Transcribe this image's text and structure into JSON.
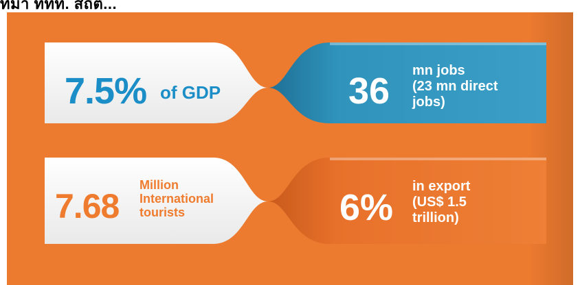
{
  "header": {
    "cut_text": "ที่มา ททท. สถิติ..."
  },
  "stats": {
    "gdp": {
      "value": "7.5%",
      "unit": "of GDP",
      "color": "#1b8ec7"
    },
    "jobs": {
      "value": "36",
      "lines": [
        "mn jobs",
        "(23 mn direct",
        "jobs)"
      ],
      "color": "#2e95bd"
    },
    "tourists": {
      "value": "7.68",
      "lines": [
        "Million",
        "International",
        "tourists"
      ],
      "color": "#ef7c2e"
    },
    "export": {
      "value": "6%",
      "lines": [
        "in export",
        "(US$ 1.5",
        "trillion)"
      ],
      "color": "#e8712a"
    }
  },
  "colors": {
    "background": "#ec7a2f",
    "ribbon_light": "#f5f5f5",
    "ribbon_blue": "#2e95bd",
    "ribbon_orange": "#e8712a"
  }
}
